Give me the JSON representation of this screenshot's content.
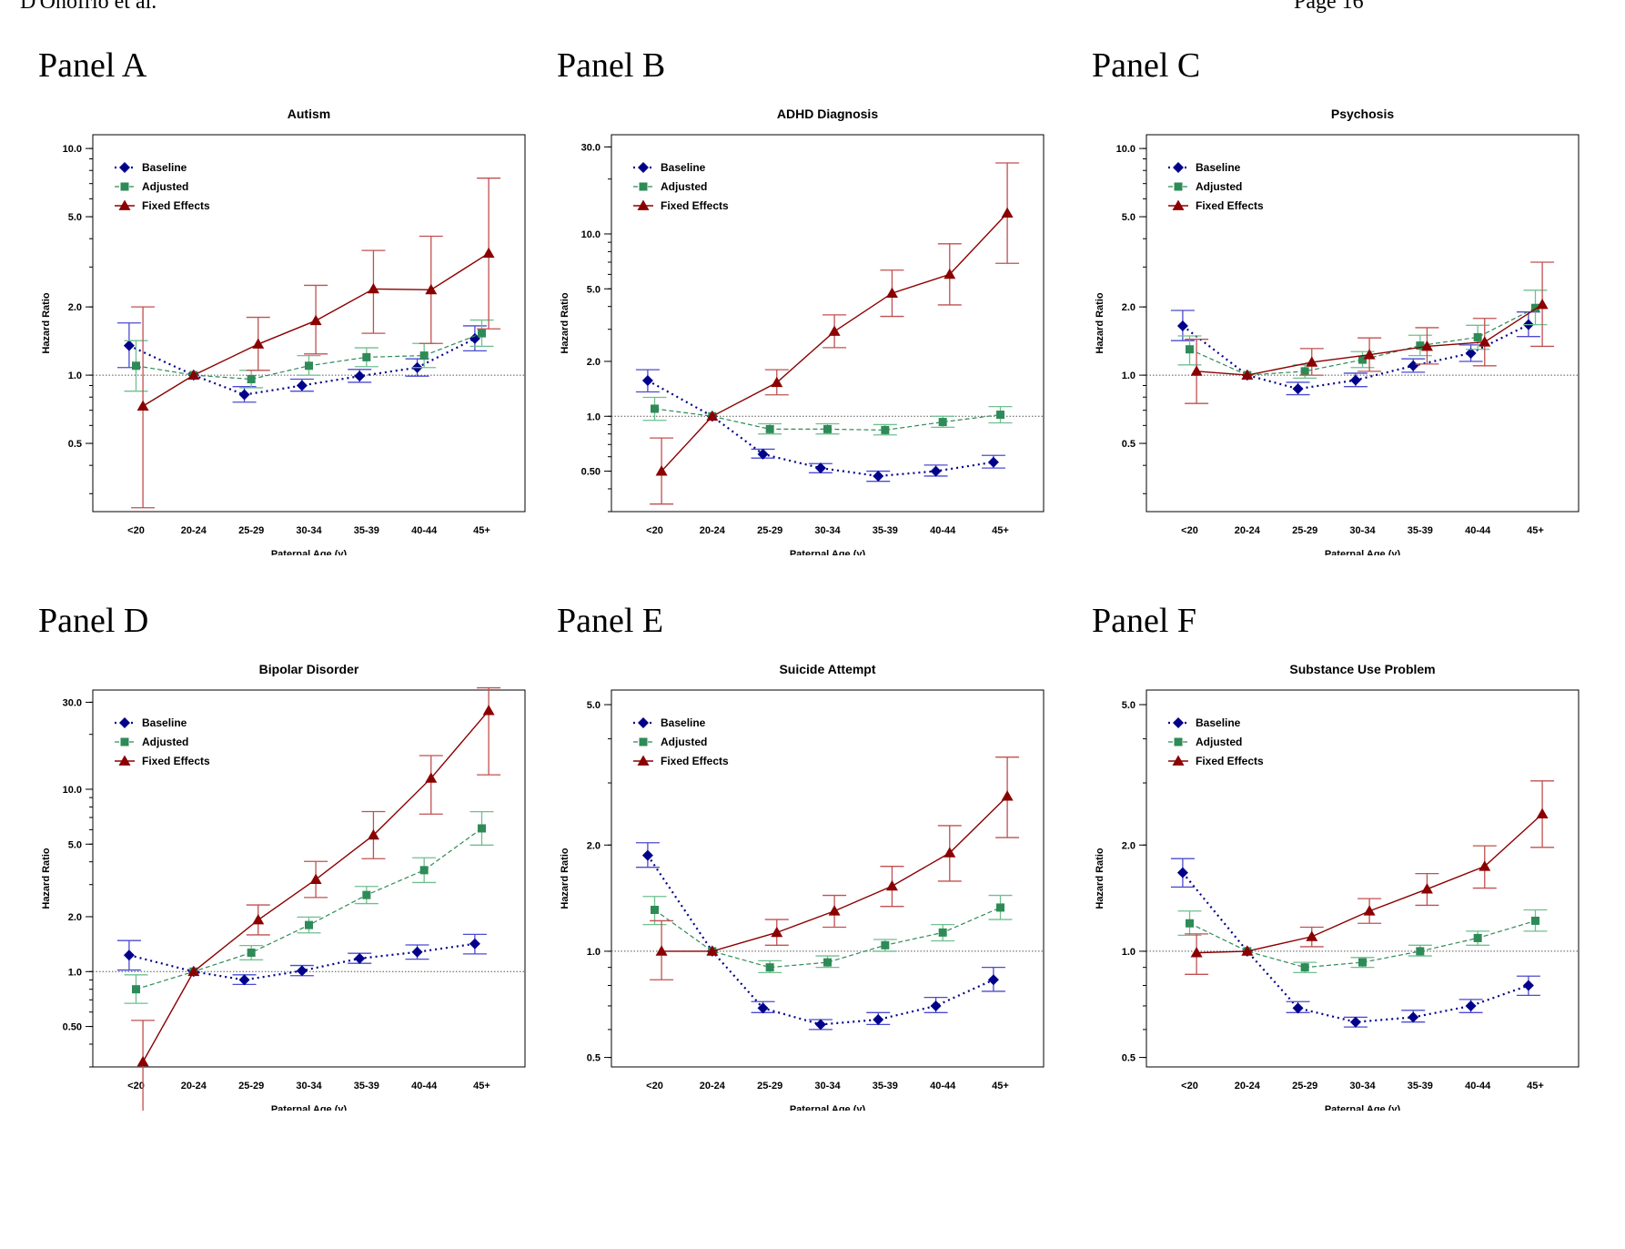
{
  "header": {
    "left": "D'Onofrio et al.",
    "right": "Page 16"
  },
  "colors": {
    "baseline": "#00008b",
    "adjusted": "#2e8b57",
    "fixed": "#8b0000",
    "ci_baseline": "#4b4bd0",
    "ci_adjusted": "#6fbf8f",
    "ci_fixed": "#c05050",
    "refline": "#555555"
  },
  "chart_data": [
    {
      "panel": "Panel A",
      "type": "line",
      "title": "Autism",
      "xlabel": "Paternal Age (y)",
      "ylabel": "Hazard Ratio",
      "categories": [
        "<20",
        "20-24",
        "25-29",
        "30-34",
        "35-39",
        "40-44",
        "45+"
      ],
      "y_scale": "log",
      "ylim": [
        0.25,
        11.5
      ],
      "yticks": [
        0.5,
        1.0,
        2.0,
        5.0,
        10.0
      ],
      "ytick_labels": [
        "0.5",
        "1.0",
        "2.0",
        "5.0",
        "10.0"
      ],
      "reference_line": 1.0,
      "legend_position": "top-left",
      "series": [
        {
          "name": "Baseline",
          "values": [
            1.35,
            1.0,
            0.82,
            0.9,
            0.99,
            1.08,
            1.45
          ],
          "lower": [
            1.08,
            null,
            0.76,
            0.85,
            0.93,
            0.99,
            1.28
          ],
          "upper": [
            1.7,
            null,
            0.89,
            0.96,
            1.06,
            1.18,
            1.65
          ]
        },
        {
          "name": "Adjusted",
          "values": [
            1.1,
            1.0,
            0.96,
            1.1,
            1.2,
            1.22,
            1.53
          ],
          "lower": [
            0.85,
            null,
            0.88,
            1.0,
            1.09,
            1.08,
            1.34
          ],
          "upper": [
            1.42,
            null,
            1.05,
            1.22,
            1.32,
            1.38,
            1.75
          ]
        },
        {
          "name": "Fixed Effects",
          "values": [
            0.73,
            1.0,
            1.37,
            1.74,
            2.4,
            2.38,
            3.45
          ],
          "lower": [
            0.26,
            null,
            1.05,
            1.24,
            1.53,
            1.38,
            1.6
          ],
          "upper": [
            2.0,
            null,
            1.8,
            2.49,
            3.55,
            4.1,
            7.4
          ]
        }
      ]
    },
    {
      "panel": "Panel B",
      "type": "line",
      "title": "ADHD Diagnosis",
      "xlabel": "Paternal Age (y)",
      "ylabel": "Hazard Ratio",
      "categories": [
        "<20",
        "20-24",
        "25-29",
        "30-34",
        "35-39",
        "40-44",
        "45+"
      ],
      "y_scale": "log",
      "ylim": [
        0.3,
        35
      ],
      "yticks": [
        0.5,
        1.0,
        2.0,
        5.0,
        10.0,
        30.0
      ],
      "ytick_labels": [
        "0.50",
        "1.0",
        "2.0",
        "5.0",
        "10.0",
        "30.0"
      ],
      "reference_line": 1.0,
      "legend_position": "top-left",
      "series": [
        {
          "name": "Baseline",
          "values": [
            1.57,
            1.0,
            0.62,
            0.52,
            0.47,
            0.5,
            0.56
          ],
          "lower": [
            1.36,
            null,
            0.59,
            0.49,
            0.44,
            0.47,
            0.52
          ],
          "upper": [
            1.8,
            null,
            0.66,
            0.55,
            0.5,
            0.54,
            0.61
          ]
        },
        {
          "name": "Adjusted",
          "values": [
            1.1,
            1.0,
            0.85,
            0.85,
            0.84,
            0.93,
            1.02
          ],
          "lower": [
            0.95,
            null,
            0.8,
            0.8,
            0.79,
            0.87,
            0.92
          ],
          "upper": [
            1.27,
            null,
            0.91,
            0.91,
            0.9,
            1.0,
            1.13
          ]
        },
        {
          "name": "Fixed Effects",
          "values": [
            0.5,
            1.0,
            1.53,
            2.92,
            4.73,
            6.0,
            13.0
          ],
          "lower": [
            0.33,
            null,
            1.31,
            2.38,
            3.53,
            4.08,
            6.9
          ],
          "upper": [
            0.76,
            null,
            1.8,
            3.6,
            6.33,
            8.83,
            24.5
          ]
        }
      ]
    },
    {
      "panel": "Panel C",
      "type": "line",
      "title": "Psychosis",
      "xlabel": "Paternal Age (y)",
      "ylabel": "Hazard Ratio",
      "categories": [
        "<20",
        "20-24",
        "25-29",
        "30-34",
        "35-39",
        "40-44",
        "45+"
      ],
      "y_scale": "log",
      "ylim": [
        0.25,
        11.5
      ],
      "yticks": [
        0.5,
        1.0,
        2.0,
        5.0,
        10.0
      ],
      "ytick_labels": [
        "0.5",
        "1.0",
        "2.0",
        "5.0",
        "10.0"
      ],
      "reference_line": 1.0,
      "legend_position": "top-left",
      "series": [
        {
          "name": "Baseline",
          "values": [
            1.65,
            1.0,
            0.87,
            0.95,
            1.1,
            1.25,
            1.67
          ],
          "lower": [
            1.42,
            null,
            0.82,
            0.89,
            1.03,
            1.15,
            1.48
          ],
          "upper": [
            1.93,
            null,
            0.93,
            1.02,
            1.18,
            1.36,
            1.9
          ]
        },
        {
          "name": "Adjusted",
          "values": [
            1.3,
            1.0,
            1.04,
            1.17,
            1.35,
            1.47,
            1.98
          ],
          "lower": [
            1.11,
            null,
            0.97,
            1.08,
            1.22,
            1.3,
            1.67
          ],
          "upper": [
            1.49,
            null,
            1.11,
            1.27,
            1.5,
            1.66,
            2.37
          ]
        },
        {
          "name": "Fixed Effects",
          "values": [
            1.04,
            1.0,
            1.14,
            1.23,
            1.34,
            1.4,
            2.05
          ],
          "lower": [
            0.75,
            null,
            1.0,
            1.04,
            1.12,
            1.1,
            1.34
          ],
          "upper": [
            1.44,
            null,
            1.31,
            1.46,
            1.62,
            1.78,
            3.15
          ]
        }
      ]
    },
    {
      "panel": "Panel D",
      "type": "line",
      "title": "Bipolar Disorder",
      "xlabel": "Paternal Age (y)",
      "ylabel": "Hazard Ratio",
      "categories": [
        "<20",
        "20-24",
        "25-29",
        "30-34",
        "35-39",
        "40-44",
        "45+"
      ],
      "y_scale": "log",
      "ylim": [
        0.3,
        35
      ],
      "yticks": [
        0.5,
        1.0,
        2.0,
        5.0,
        10.0,
        30.0
      ],
      "ytick_labels": [
        "0.50",
        "1.0",
        "2.0",
        "5.0",
        "10.0",
        "30.0"
      ],
      "reference_line": 1.0,
      "legend_position": "top-left",
      "series": [
        {
          "name": "Baseline",
          "values": [
            1.23,
            1.0,
            0.9,
            1.01,
            1.18,
            1.28,
            1.42
          ],
          "lower": [
            1.02,
            null,
            0.85,
            0.95,
            1.11,
            1.17,
            1.25
          ],
          "upper": [
            1.48,
            null,
            0.96,
            1.08,
            1.26,
            1.4,
            1.6
          ]
        },
        {
          "name": "Adjusted",
          "values": [
            0.8,
            1.0,
            1.27,
            1.8,
            2.63,
            3.6,
            6.1
          ],
          "lower": [
            0.67,
            null,
            1.16,
            1.63,
            2.36,
            3.08,
            4.94
          ],
          "upper": [
            0.96,
            null,
            1.39,
            1.99,
            2.93,
            4.21,
            7.53
          ]
        },
        {
          "name": "Fixed Effects",
          "values": [
            0.32,
            1.0,
            1.92,
            3.2,
            5.6,
            11.5,
            27.0
          ],
          "lower": [
            0.12,
            null,
            1.59,
            2.55,
            4.16,
            7.31,
            12.0
          ],
          "upper": [
            0.54,
            null,
            2.32,
            4.02,
            7.54,
            15.3,
            36.0
          ]
        }
      ]
    },
    {
      "panel": "Panel E",
      "type": "line",
      "title": "Suicide Attempt",
      "xlabel": "Paternal Age (y)",
      "ylabel": "Hazard Ratio",
      "categories": [
        "<20",
        "20-24",
        "25-29",
        "30-34",
        "35-39",
        "40-44",
        "45+"
      ],
      "y_scale": "log",
      "ylim": [
        0.47,
        5.5
      ],
      "yticks": [
        0.5,
        1.0,
        2.0,
        5.0
      ],
      "ytick_labels": [
        "0.5",
        "1.0",
        "2.0",
        "5.0"
      ],
      "reference_line": 1.0,
      "legend_position": "top-left",
      "series": [
        {
          "name": "Baseline",
          "values": [
            1.87,
            1.0,
            0.69,
            0.62,
            0.64,
            0.7,
            0.83
          ],
          "lower": [
            1.73,
            null,
            0.67,
            0.6,
            0.62,
            0.67,
            0.77
          ],
          "upper": [
            2.03,
            null,
            0.72,
            0.64,
            0.67,
            0.74,
            0.9
          ]
        },
        {
          "name": "Adjusted",
          "values": [
            1.31,
            1.0,
            0.9,
            0.93,
            1.04,
            1.13,
            1.33
          ],
          "lower": [
            1.19,
            null,
            0.87,
            0.9,
            1.0,
            1.07,
            1.23
          ],
          "upper": [
            1.43,
            null,
            0.94,
            0.97,
            1.08,
            1.19,
            1.44
          ]
        },
        {
          "name": "Fixed Effects",
          "values": [
            1.0,
            1.0,
            1.13,
            1.3,
            1.53,
            1.9,
            2.75
          ],
          "lower": [
            0.83,
            null,
            1.04,
            1.17,
            1.34,
            1.58,
            2.1
          ],
          "upper": [
            1.22,
            null,
            1.23,
            1.44,
            1.74,
            2.27,
            3.55
          ]
        }
      ]
    },
    {
      "panel": "Panel F",
      "type": "line",
      "title": "Substance Use Problem",
      "xlabel": "Paternal Age (y)",
      "ylabel": "Hazard Ratio",
      "categories": [
        "<20",
        "20-24",
        "25-29",
        "30-34",
        "35-39",
        "40-44",
        "45+"
      ],
      "y_scale": "log",
      "ylim": [
        0.47,
        5.5
      ],
      "yticks": [
        0.5,
        1.0,
        2.0,
        5.0
      ],
      "ytick_labels": [
        "0.5",
        "1.0",
        "2.0",
        "5.0"
      ],
      "reference_line": 1.0,
      "legend_position": "top-left",
      "series": [
        {
          "name": "Baseline",
          "values": [
            1.67,
            1.0,
            0.69,
            0.63,
            0.65,
            0.7,
            0.8
          ],
          "lower": [
            1.52,
            null,
            0.67,
            0.61,
            0.63,
            0.67,
            0.75
          ],
          "upper": [
            1.83,
            null,
            0.72,
            0.65,
            0.68,
            0.73,
            0.85
          ]
        },
        {
          "name": "Adjusted",
          "values": [
            1.2,
            1.0,
            0.9,
            0.93,
            1.0,
            1.09,
            1.22
          ],
          "lower": [
            1.11,
            null,
            0.87,
            0.9,
            0.97,
            1.04,
            1.14
          ],
          "upper": [
            1.3,
            null,
            0.93,
            0.96,
            1.04,
            1.14,
            1.31
          ]
        },
        {
          "name": "Fixed Effects",
          "values": [
            0.99,
            1.0,
            1.1,
            1.3,
            1.5,
            1.74,
            2.45
          ],
          "lower": [
            0.86,
            null,
            1.03,
            1.2,
            1.35,
            1.51,
            1.97
          ],
          "upper": [
            1.12,
            null,
            1.17,
            1.41,
            1.66,
            1.99,
            3.04
          ]
        }
      ]
    }
  ]
}
